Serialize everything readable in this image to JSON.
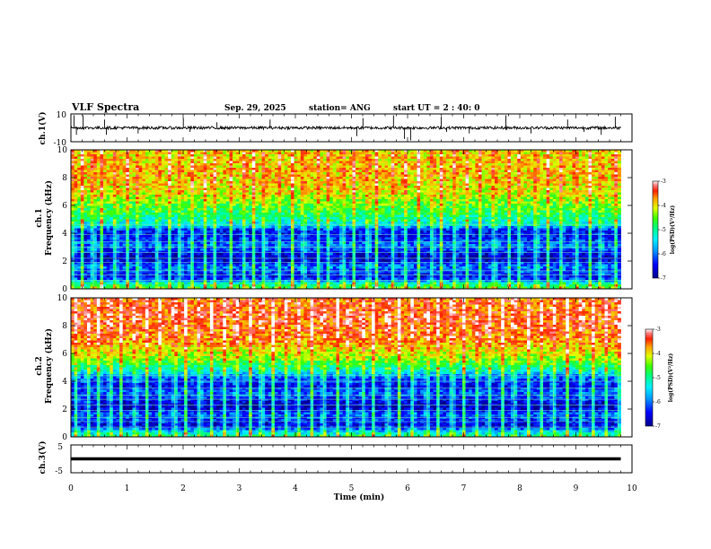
{
  "header": {
    "title": "VLF Spectra",
    "date": "Sep. 29, 2025",
    "station": "station= ANG",
    "start": "start  UT =  2 : 40: 0"
  },
  "chart_data": [
    {
      "type": "line",
      "id": "ch1-waveform",
      "ylabel": "ch.1(V)",
      "ylim": [
        -10,
        10
      ],
      "yticks": [
        "10",
        "-10"
      ],
      "xlim": [
        0,
        10
      ],
      "x_extent": 9.8,
      "baseline": 0,
      "noise_amplitude": 2,
      "spikes": [
        {
          "x": 0.05,
          "y": 9
        },
        {
          "x": 0.1,
          "y": -5
        },
        {
          "x": 0.22,
          "y": 9
        },
        {
          "x": 0.6,
          "y": 6
        },
        {
          "x": 0.63,
          "y": -5
        },
        {
          "x": 1.2,
          "y": -4
        },
        {
          "x": 2.0,
          "y": 7
        },
        {
          "x": 2.12,
          "y": -3
        },
        {
          "x": 2.6,
          "y": 4
        },
        {
          "x": 3.55,
          "y": 6
        },
        {
          "x": 5.1,
          "y": -6
        },
        {
          "x": 5.2,
          "y": 7
        },
        {
          "x": 5.75,
          "y": 9
        },
        {
          "x": 5.95,
          "y": -8
        },
        {
          "x": 6.05,
          "y": -9
        },
        {
          "x": 6.6,
          "y": 8
        },
        {
          "x": 6.7,
          "y": -3
        },
        {
          "x": 7.1,
          "y": -4
        },
        {
          "x": 7.75,
          "y": 9
        },
        {
          "x": 8.2,
          "y": -4
        },
        {
          "x": 8.85,
          "y": 6
        },
        {
          "x": 9.15,
          "y": -3
        },
        {
          "x": 9.45,
          "y": -5
        },
        {
          "x": 9.7,
          "y": 8
        }
      ]
    },
    {
      "type": "heatmap",
      "id": "ch1-spectrogram",
      "ylabel_line1": "ch.1",
      "ylabel_line2": "Frequency (kHz)",
      "ylim": [
        0,
        10
      ],
      "yticks": [
        "0",
        "2",
        "4",
        "6",
        "8",
        "10"
      ],
      "xlim": [
        0,
        10
      ],
      "x_extent": 9.8,
      "colorbar": {
        "range": [
          -7,
          -3
        ],
        "ticks": [
          "-3",
          "-4",
          "-5",
          "-6",
          "-7"
        ],
        "label": "log(PSD)(V²/Hz)"
      },
      "profile": [
        {
          "f": 0,
          "v": -4.6
        },
        {
          "f": 0.4,
          "v": -5.2
        },
        {
          "f": 0.8,
          "v": -6.6
        },
        {
          "f": 1.6,
          "v": -6.0
        },
        {
          "f": 2.2,
          "v": -6.9
        },
        {
          "f": 2.8,
          "v": -6.3
        },
        {
          "f": 3.2,
          "v": -6.0
        },
        {
          "f": 3.6,
          "v": -6.4
        },
        {
          "f": 4.2,
          "v": -6.5
        },
        {
          "f": 4.6,
          "v": -5.4
        },
        {
          "f": 5.5,
          "v": -4.8
        },
        {
          "f": 7.0,
          "v": -4.1
        },
        {
          "f": 8.5,
          "v": -3.9
        },
        {
          "f": 10,
          "v": -4.0
        }
      ],
      "bursts": [
        0.05,
        0.2,
        0.4,
        0.55,
        0.8,
        1.0,
        1.2,
        1.55,
        1.75,
        1.95,
        2.15,
        2.4,
        2.55,
        2.85,
        3.1,
        3.25,
        3.45,
        3.7,
        3.95,
        4.15,
        4.4,
        4.6,
        4.85,
        5.05,
        5.3,
        5.45,
        5.75,
        5.95,
        6.2,
        6.45,
        6.6,
        6.85,
        7.05,
        7.3,
        7.55,
        7.8,
        8.0,
        8.3,
        8.5,
        8.75,
        9.0,
        9.25,
        9.45,
        9.7
      ],
      "band_lines": [
        0.6,
        1.0,
        1.3,
        1.9,
        2.2,
        2.6,
        3.0,
        3.4,
        3.9,
        4.6
      ]
    },
    {
      "type": "heatmap",
      "id": "ch2-spectrogram",
      "ylabel_line1": "ch.2",
      "ylabel_line2": "Frequency (kHz)",
      "ylim": [
        0,
        10
      ],
      "yticks": [
        "0",
        "2",
        "4",
        "6",
        "8",
        "10"
      ],
      "xlim": [
        0,
        10
      ],
      "x_extent": 9.8,
      "colorbar": {
        "range": [
          -7,
          -3
        ],
        "ticks": [
          "-3",
          "-4",
          "-5",
          "-6",
          "-7"
        ],
        "label": "log(PSD)(V²/Hz)"
      },
      "profile": [
        {
          "f": 0,
          "v": -4.9
        },
        {
          "f": 0.4,
          "v": -5.6
        },
        {
          "f": 0.8,
          "v": -6.7
        },
        {
          "f": 1.6,
          "v": -6.1
        },
        {
          "f": 2.2,
          "v": -6.9
        },
        {
          "f": 2.8,
          "v": -6.4
        },
        {
          "f": 3.2,
          "v": -6.1
        },
        {
          "f": 3.6,
          "v": -6.5
        },
        {
          "f": 4.2,
          "v": -6.2
        },
        {
          "f": 4.8,
          "v": -5.2
        },
        {
          "f": 5.6,
          "v": -4.4
        },
        {
          "f": 7.0,
          "v": -3.7
        },
        {
          "f": 8.5,
          "v": -3.5
        },
        {
          "f": 10,
          "v": -3.6
        }
      ],
      "bursts": [
        0.1,
        0.3,
        0.5,
        0.7,
        0.9,
        1.15,
        1.35,
        1.6,
        1.85,
        2.05,
        2.3,
        2.5,
        2.75,
        2.95,
        3.2,
        3.4,
        3.6,
        3.85,
        4.05,
        4.3,
        4.5,
        4.75,
        4.95,
        5.2,
        5.4,
        5.65,
        5.85,
        6.1,
        6.35,
        6.55,
        6.8,
        7.0,
        7.25,
        7.45,
        7.7,
        7.9,
        8.15,
        8.4,
        8.6,
        8.85,
        9.1,
        9.3,
        9.55,
        9.75
      ],
      "band_lines": [
        0.7,
        1.1,
        1.4,
        1.9,
        2.3,
        2.7,
        3.0,
        3.5,
        4.0,
        4.4
      ]
    },
    {
      "type": "line",
      "id": "ch3-waveform",
      "ylabel": "ch.3(V)",
      "ylim": [
        -5,
        5
      ],
      "yticks": [
        "5",
        "-5"
      ],
      "xlim": [
        0,
        10
      ],
      "x_extent": 9.8,
      "baseline": 0,
      "noise_amplitude": 0
    }
  ],
  "xaxis": {
    "label": "Time  (min)",
    "ticks": [
      "0",
      "1",
      "2",
      "3",
      "4",
      "5",
      "6",
      "7",
      "8",
      "9",
      "10"
    ]
  }
}
